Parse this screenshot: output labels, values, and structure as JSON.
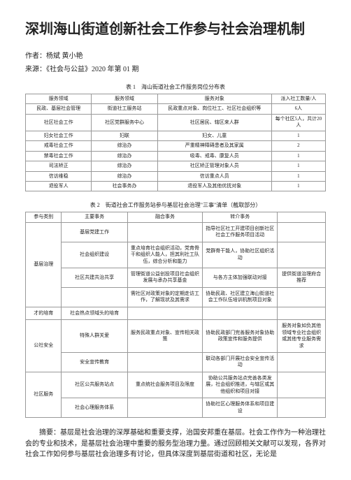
{
  "title": "深圳海山街道创新社会工作参与社会治理机制",
  "author_line": "作者：杨斌 黄小艳",
  "source_line": "来源：《社会与公益》2020 年第 01 期",
  "table1": {
    "caption": "表 1　海山街道社会工作服务岗位分布表",
    "headers": [
      "服务领域",
      "服务领域",
      "服务对象",
      "派入社工数量/人"
    ],
    "rows": [
      [
        "民政、基层社会管理",
        "街道社工服务站",
        "民政重点对象、岗位社工、社区社会组织等",
        "6人"
      ],
      [
        "社区社会工作",
        "社区党群服务中心",
        "社区居民、辖区来人群",
        "每个社区5人，共计20人"
      ],
      [
        "妇女社会工作",
        "妇联",
        "妇女、儿童",
        "1"
      ],
      [
        "戒毒社会工作",
        "综治办",
        "严重精神障碍患者及其家属",
        "2"
      ],
      [
        "禁毒社会工作",
        "综治办",
        "吸毒、戒毒、康复人员",
        "1"
      ],
      [
        "司法矫正",
        "综治办",
        "社区矫正管理对象人员",
        "1"
      ],
      [
        "信访维稳",
        "综治办",
        "信访重点人员",
        "1"
      ],
      [
        "退役军人",
        "社会事务办",
        "退役军人及其他优抚对象",
        "1"
      ]
    ]
  },
  "table2": {
    "caption": "表 2　街道社会工作服务站参与基层社会治理\"三事\"清单（截取部分）",
    "headers": [
      "参与类别",
      "主要事务",
      "融合事务",
      "转介事务"
    ],
    "groups": [
      {
        "name": "基层治理",
        "rows": [
          [
            "基层党建工作",
            "",
            "指导社区社工开建项目创新社区社会工作服务项目活动",
            ""
          ],
          [
            "社会组织建设",
            "重点培育社会组织活动，党育骨干和组织人能人，担其利社工队伍，综合分析和能力",
            "党群骨干能人，协助社区组织活动",
            ""
          ],
          [
            "社区共建共治共享",
            "管理街道公益创投项目社会组织发展与承办共享基金",
            "与各方主体加强联动对接",
            "提供街道治理府合推荐"
          ],
          [
            "",
            "需社区对政策对象的定期走访工作，了解现状及其需求",
            "协助民政、社区建立海山街道社会工作队伍培训机制项目对象",
            ""
          ]
        ]
      },
      {
        "name": "才的培育",
        "rows": [
          [
            "社会热点领域头的培育",
            "",
            "",
            ""
          ]
        ]
      },
      {
        "name": "公社安全",
        "rows": [
          [
            "特殊人群关爱",
            "服务民政重点对象、宣传相关政策",
            "协助民政部门完善服务对象协助政策宣传和服务提供",
            "服务对象如负其他领域专业社会组织或其他专业服务需求"
          ],
          [
            "安全宣传教育",
            "",
            "联动各部门开展社会安全宣传活动",
            ""
          ]
        ]
      },
      {
        "name": "社区服务",
        "rows": [
          [
            "社区公共服务站点",
            "重点统社会服务项目及限度",
            "协助公共服务站点完善各类发展，社会组织推进，与辖区或其他组织和项目对接",
            ""
          ],
          [
            "社会心理服务体系",
            "",
            "协助社区心理服务体系和项目建设",
            ""
          ]
        ]
      }
    ]
  },
  "body": "摘要：基层是社会治理的深厚基础和重要支撑，治国安邦重在基层。社会工作作为一种治理社会的专业和技术，是基层社会治理中重要的服务型治理力量。通过回顾相关文献可以发现，各界对社会工作如何参与基层社会治理多有讨论，但具体深度到基层街道和社区，无论是"
}
